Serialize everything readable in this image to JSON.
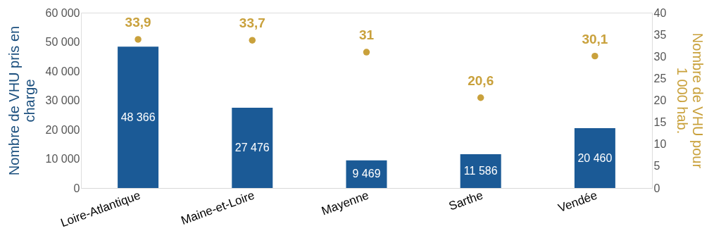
{
  "chart_data": {
    "type": "bar",
    "categories": [
      "Loire-Atlantique",
      "Maine-et-Loire",
      "Mayenne",
      "Sarthe",
      "Vendée"
    ],
    "ylabel": "Nombre de VHU pris en charge",
    "y2label": "Nombre de VHU pour 1 000 hab.",
    "ylim": [
      0,
      60000
    ],
    "yticks": [
      0,
      {
        "value": 10000,
        "label": "10 000"
      },
      {
        "value": 20000,
        "label": "20 000"
      },
      {
        "value": 30000,
        "label": "30 000"
      },
      {
        "value": 40000,
        "label": "40 000"
      },
      {
        "value": 50000,
        "label": "50 000"
      },
      {
        "value": 60000,
        "label": "60 000"
      }
    ],
    "y2lim": [
      0,
      40
    ],
    "y2ticks": [
      0,
      5,
      10,
      15,
      20,
      25,
      30,
      35,
      40
    ],
    "series": [
      {
        "color": "#1b5a96",
        "values": [
          48366,
          27476,
          9469,
          11586,
          20460
        ],
        "value_labels": [
          "48 366",
          "27 476",
          "9 469",
          "11 586",
          "20 460"
        ]
      },
      {
        "type": "scatter",
        "axis": "y2",
        "color": "#c9a13c",
        "values": [
          33.9,
          33.7,
          31,
          20.6,
          30.1
        ],
        "value_labels": [
          "33,9",
          "33,7",
          "31",
          "20,6",
          "30,1"
        ]
      }
    ]
  }
}
